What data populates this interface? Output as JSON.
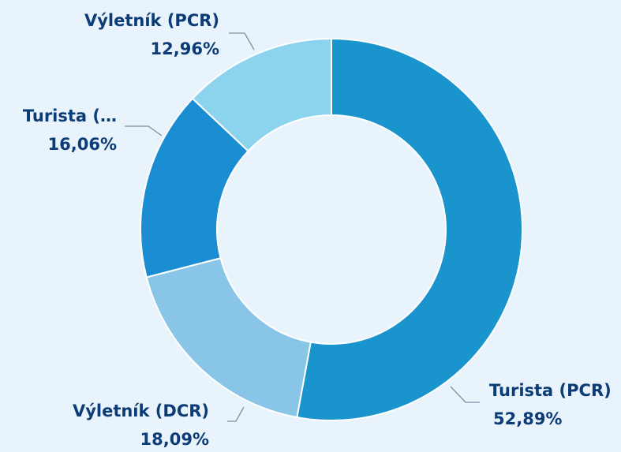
{
  "chart_data": {
    "type": "donut",
    "categories": [
      "Turista (PCR)",
      "Výletník (DCR)",
      "Turista (…",
      "Výletník (PCR)"
    ],
    "values": [
      52.89,
      18.09,
      16.06,
      12.96
    ],
    "value_labels": [
      "52,89%",
      "18,09%",
      "16,06%",
      "12,96%"
    ],
    "colors": [
      "#1a94cc",
      "#89c5e7",
      "#1a8dd3",
      "#8cd4ee"
    ]
  }
}
